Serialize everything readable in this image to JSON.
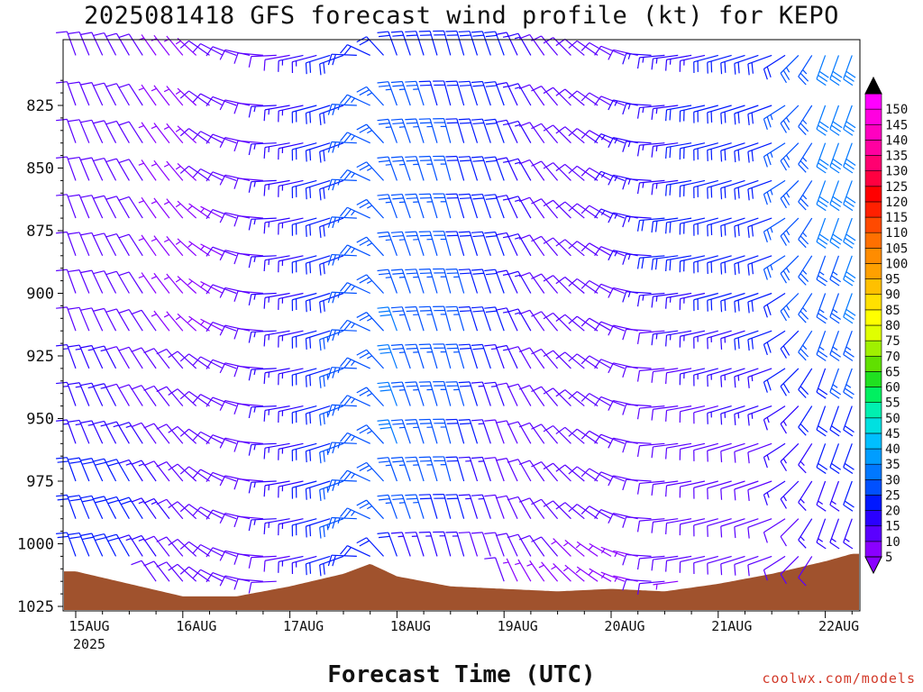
{
  "title": "2025081418 GFS forecast wind profile (kt) for KEPO",
  "xlabel": "Forecast Time (UTC)",
  "credit": "coolwx.com/models",
  "chart_data": {
    "type": "wind_barbs",
    "x_ticks": [
      "15AUG",
      "16AUG",
      "17AUG",
      "18AUG",
      "19AUG",
      "20AUG",
      "21AUG",
      "22AUG"
    ],
    "x_year": "2025",
    "y_ticks": [
      825,
      850,
      875,
      900,
      925,
      950,
      975,
      1000,
      1025
    ],
    "y_range_hpa": [
      800,
      1025
    ],
    "colorbar": {
      "ticks": [
        5,
        10,
        15,
        20,
        25,
        30,
        35,
        40,
        45,
        50,
        55,
        60,
        65,
        70,
        75,
        80,
        85,
        90,
        95,
        100,
        105,
        110,
        115,
        120,
        125,
        130,
        135,
        140,
        145,
        150
      ],
      "colors": [
        "#8a00ff",
        "#5a00ff",
        "#2a00ff",
        "#0018ff",
        "#0050ff",
        "#0078ff",
        "#009dff",
        "#00bfff",
        "#00e0e0",
        "#00f0b0",
        "#00f060",
        "#20e020",
        "#60e000",
        "#a0f000",
        "#e0ff00",
        "#ffff00",
        "#ffe000",
        "#ffc000",
        "#ffa000",
        "#ff8c00",
        "#ff7000",
        "#ff4a00",
        "#ff2000",
        "#ff0000",
        "#ff0040",
        "#ff0070",
        "#ff00a0",
        "#ff00c0",
        "#ff00e0",
        "#ff00ff"
      ]
    },
    "terrain_color": "#a0522d",
    "levels_hpa": [
      805,
      825,
      840,
      855,
      870,
      885,
      900,
      915,
      930,
      945,
      960,
      975,
      990,
      1005,
      1015
    ],
    "surface_pressure_hpa": [
      {
        "time": "15AUG 00Z",
        "p": 1011
      },
      {
        "time": "15AUG 12Z",
        "p": 1016
      },
      {
        "time": "16AUG 00Z",
        "p": 1021
      },
      {
        "time": "16AUG 12Z",
        "p": 1021
      },
      {
        "time": "17AUG 00Z",
        "p": 1017
      },
      {
        "time": "17AUG 12Z",
        "p": 1012
      },
      {
        "time": "17AUG 18Z",
        "p": 1008
      },
      {
        "time": "18AUG 00Z",
        "p": 1013
      },
      {
        "time": "18AUG 12Z",
        "p": 1017
      },
      {
        "time": "19AUG 00Z",
        "p": 1018
      },
      {
        "time": "19AUG 12Z",
        "p": 1019
      },
      {
        "time": "20AUG 00Z",
        "p": 1018
      },
      {
        "time": "20AUG 12Z",
        "p": 1019
      },
      {
        "time": "21AUG 00Z",
        "p": 1016
      },
      {
        "time": "21AUG 12Z",
        "p": 1012
      },
      {
        "time": "22AUG 00Z",
        "p": 1007
      },
      {
        "time": "22AUG 06Z",
        "p": 1004
      }
    ],
    "wind_regimes": [
      {
        "time": "15AUG 00Z",
        "dir_deg": 340,
        "speed_kt": [
          8,
          8,
          8,
          8,
          8,
          10,
          10,
          12,
          14,
          14,
          16,
          18,
          20,
          18,
          12
        ]
      },
      {
        "time": "15AUG 12Z",
        "dir_deg": 330,
        "speed_kt": [
          8,
          8,
          8,
          8,
          8,
          8,
          8,
          10,
          12,
          12,
          14,
          18,
          20,
          18,
          12
        ]
      },
      {
        "time": "16AUG 00Z",
        "dir_deg": 320,
        "speed_kt": [
          6,
          6,
          6,
          6,
          6,
          6,
          6,
          6,
          8,
          8,
          10,
          10,
          12,
          10,
          8
        ]
      },
      {
        "time": "16AUG 12Z",
        "dir_deg": 290,
        "speed_kt": [
          10,
          10,
          10,
          10,
          8,
          8,
          8,
          8,
          8,
          8,
          10,
          10,
          10,
          10,
          8
        ]
      },
      {
        "time": "17AUG 00Z",
        "dir_deg": 260,
        "speed_kt": [
          12,
          14,
          14,
          14,
          14,
          14,
          14,
          14,
          14,
          14,
          14,
          14,
          14,
          12,
          10
        ]
      },
      {
        "time": "17AUG 12Z",
        "dir_deg": 250,
        "speed_kt": [
          20,
          22,
          22,
          22,
          22,
          22,
          22,
          24,
          24,
          24,
          24,
          24,
          24,
          20,
          14
        ]
      },
      {
        "time": "18AUG 00Z",
        "dir_deg": 340,
        "speed_kt": [
          22,
          24,
          24,
          24,
          24,
          26,
          26,
          28,
          28,
          28,
          28,
          26,
          24,
          18,
          10
        ]
      },
      {
        "time": "18AUG 12Z",
        "dir_deg": 345,
        "speed_kt": [
          22,
          22,
          24,
          24,
          24,
          24,
          26,
          26,
          26,
          26,
          26,
          24,
          22,
          16,
          10
        ]
      },
      {
        "time": "19AUG 00Z",
        "dir_deg": 340,
        "speed_kt": [
          18,
          18,
          18,
          18,
          18,
          18,
          18,
          18,
          16,
          14,
          12,
          10,
          10,
          8,
          8
        ]
      },
      {
        "time": "19AUG 12Z",
        "dir_deg": 320,
        "speed_kt": [
          10,
          10,
          10,
          10,
          10,
          8,
          8,
          8,
          8,
          8,
          8,
          8,
          8,
          8,
          6
        ]
      },
      {
        "time": "20AUG 00Z",
        "dir_deg": 300,
        "speed_kt": [
          10,
          10,
          12,
          12,
          12,
          10,
          10,
          8,
          8,
          8,
          8,
          8,
          8,
          6,
          6
        ]
      },
      {
        "time": "20AUG 12Z",
        "dir_deg": 265,
        "speed_kt": [
          14,
          16,
          16,
          16,
          18,
          18,
          14,
          12,
          10,
          10,
          8,
          8,
          8,
          8,
          8
        ]
      },
      {
        "time": "21AUG 00Z",
        "dir_deg": 255,
        "speed_kt": [
          18,
          20,
          20,
          20,
          20,
          20,
          18,
          16,
          14,
          12,
          10,
          10,
          8,
          8,
          6
        ]
      },
      {
        "time": "21AUG 12Z",
        "dir_deg": 250,
        "speed_kt": [
          20,
          22,
          22,
          22,
          22,
          22,
          20,
          18,
          16,
          14,
          12,
          12,
          10,
          8,
          8
        ]
      },
      {
        "time": "22AUG 00Z",
        "dir_deg": 200,
        "speed_kt": [
          28,
          28,
          28,
          28,
          28,
          26,
          26,
          24,
          22,
          20,
          18,
          16,
          14,
          12,
          10
        ]
      },
      {
        "time": "22AUG 06Z",
        "dir_deg": 200,
        "speed_kt": [
          30,
          30,
          30,
          30,
          30,
          28,
          28,
          26,
          24,
          22,
          20,
          18,
          16,
          14,
          12
        ]
      }
    ]
  }
}
